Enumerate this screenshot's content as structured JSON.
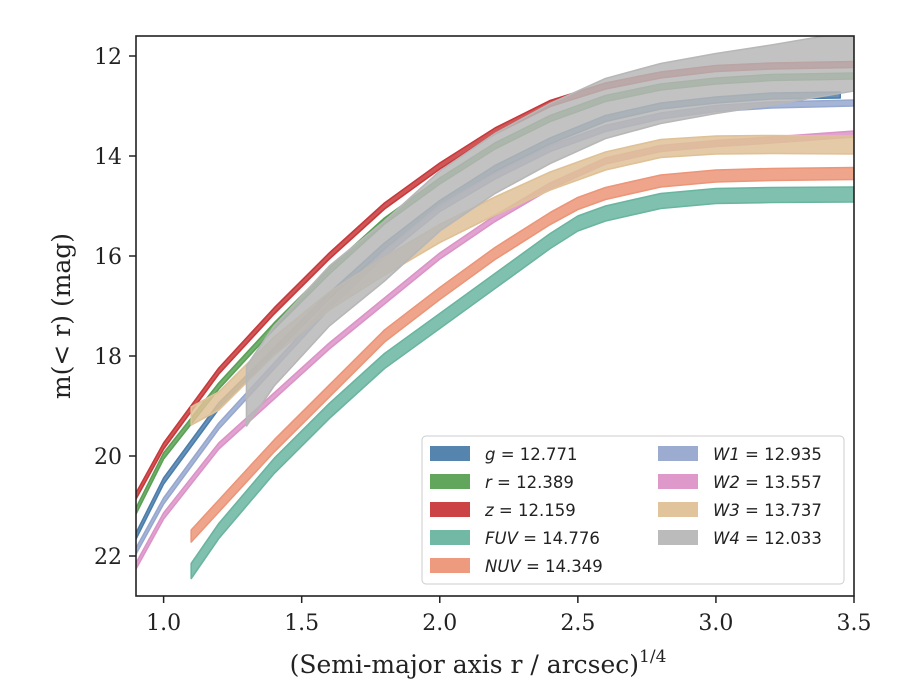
{
  "chart_data": {
    "type": "line",
    "xlabel": "(Semi-major axis r / arcsec)",
    "xlabel_sup": "1/4",
    "ylabel": "m(< r) (mag)",
    "xlim": [
      0.9,
      3.5
    ],
    "ylim": [
      22.8,
      11.6
    ],
    "y_inverted": true,
    "x_ticks": [
      1.0,
      1.5,
      2.0,
      2.5,
      3.0,
      3.5
    ],
    "x_tick_labels": [
      "1.0",
      "1.5",
      "2.0",
      "2.5",
      "3.0",
      "3.5"
    ],
    "y_ticks": [
      12,
      14,
      16,
      18,
      20,
      22
    ],
    "y_tick_labels": [
      "12",
      "14",
      "16",
      "18",
      "20",
      "22"
    ],
    "grid": false,
    "legend_position": "lower-right",
    "series": [
      {
        "name": "g",
        "label_value": "12.771",
        "color": "#4c7eab",
        "band": 0.06,
        "x": [
          0.9,
          1.0,
          1.2,
          1.4,
          1.6,
          1.8,
          2.0,
          2.2,
          2.4,
          2.6,
          2.8,
          3.0,
          3.2,
          3.45
        ],
        "y": [
          21.6,
          20.5,
          19.0,
          17.9,
          16.8,
          15.8,
          14.95,
          14.25,
          13.7,
          13.25,
          13.0,
          12.88,
          12.8,
          12.78
        ]
      },
      {
        "name": "r",
        "label_value": "12.389",
        "color": "#5aa155",
        "band": 0.06,
        "x": [
          0.9,
          1.0,
          1.2,
          1.4,
          1.6,
          1.8,
          2.0,
          2.2,
          2.4,
          2.6,
          2.8,
          3.0,
          3.2,
          3.5
        ],
        "y": [
          21.1,
          20.0,
          18.6,
          17.4,
          16.3,
          15.3,
          14.5,
          13.8,
          13.25,
          12.85,
          12.62,
          12.5,
          12.43,
          12.4
        ]
      },
      {
        "name": "z",
        "label_value": "12.159",
        "color": "#c8393b",
        "band": 0.06,
        "x": [
          0.9,
          1.0,
          1.2,
          1.4,
          1.6,
          1.8,
          2.0,
          2.2,
          2.4,
          2.6,
          2.8,
          3.0,
          3.2,
          3.5
        ],
        "y": [
          20.8,
          19.8,
          18.3,
          17.1,
          16.0,
          15.0,
          14.2,
          13.5,
          12.95,
          12.6,
          12.38,
          12.25,
          12.2,
          12.17
        ]
      },
      {
        "name": "FUV",
        "label_value": "14.776",
        "color": "#6ab5a0",
        "band": 0.15,
        "x": [
          1.1,
          1.2,
          1.4,
          1.6,
          1.8,
          2.0,
          2.2,
          2.4,
          2.5,
          2.6,
          2.8,
          3.0,
          3.2,
          3.5
        ],
        "y": [
          22.3,
          21.5,
          20.2,
          19.1,
          18.1,
          17.3,
          16.5,
          15.7,
          15.35,
          15.15,
          14.9,
          14.8,
          14.78,
          14.77
        ]
      },
      {
        "name": "NUV",
        "label_value": "14.349",
        "color": "#ec9578",
        "band": 0.12,
        "x": [
          1.1,
          1.2,
          1.4,
          1.6,
          1.8,
          2.0,
          2.2,
          2.4,
          2.5,
          2.6,
          2.8,
          3.0,
          3.2,
          3.5
        ],
        "y": [
          21.6,
          21.0,
          19.8,
          18.7,
          17.6,
          16.75,
          15.95,
          15.25,
          14.95,
          14.75,
          14.5,
          14.4,
          14.37,
          14.35
        ]
      },
      {
        "name": "W1",
        "label_value": "12.935",
        "color": "#97a8cf",
        "band": 0.06,
        "x": [
          0.9,
          1.0,
          1.2,
          1.4,
          1.6,
          1.8,
          2.0,
          2.2,
          2.4,
          2.6,
          2.8,
          3.0,
          3.2,
          3.5
        ],
        "y": [
          21.9,
          20.9,
          19.4,
          18.2,
          17.0,
          15.95,
          15.05,
          14.4,
          13.85,
          13.45,
          13.2,
          13.05,
          12.98,
          12.94
        ]
      },
      {
        "name": "W2",
        "label_value": "13.557",
        "color": "#dc93c7",
        "band": 0.06,
        "x": [
          0.9,
          1.0,
          1.2,
          1.4,
          1.6,
          1.8,
          2.0,
          2.2,
          2.4,
          2.6,
          2.8,
          3.0,
          3.2,
          3.5
        ],
        "y": [
          22.2,
          21.2,
          19.8,
          18.8,
          17.8,
          16.9,
          16.0,
          15.25,
          14.6,
          14.1,
          13.85,
          13.75,
          13.68,
          13.56
        ]
      },
      {
        "name": "W3",
        "label_value": "13.737",
        "color": "#dfc197",
        "band": 0.18,
        "x": [
          1.1,
          1.2,
          1.4,
          1.6,
          1.8,
          2.0,
          2.2,
          2.4,
          2.6,
          2.8,
          3.0,
          3.2,
          3.5
        ],
        "y": [
          19.2,
          18.9,
          17.8,
          16.9,
          16.2,
          15.55,
          15.0,
          14.5,
          14.1,
          13.85,
          13.78,
          13.77,
          13.78
        ]
      },
      {
        "name": "W4",
        "label_value": "12.033",
        "color": "#b7b7b7",
        "band": 0.6,
        "x": [
          1.3,
          1.4,
          1.6,
          1.8,
          2.0,
          2.2,
          2.4,
          2.6,
          2.8,
          3.0,
          3.2,
          3.5
        ],
        "y": [
          18.8,
          18.0,
          16.8,
          15.9,
          14.9,
          14.15,
          13.55,
          13.05,
          12.75,
          12.55,
          12.38,
          12.1
        ]
      }
    ]
  },
  "legend_columns": [
    [
      "g",
      "r",
      "z",
      "FUV",
      "NUV"
    ],
    [
      "W1",
      "W2",
      "W3",
      "W4"
    ]
  ]
}
